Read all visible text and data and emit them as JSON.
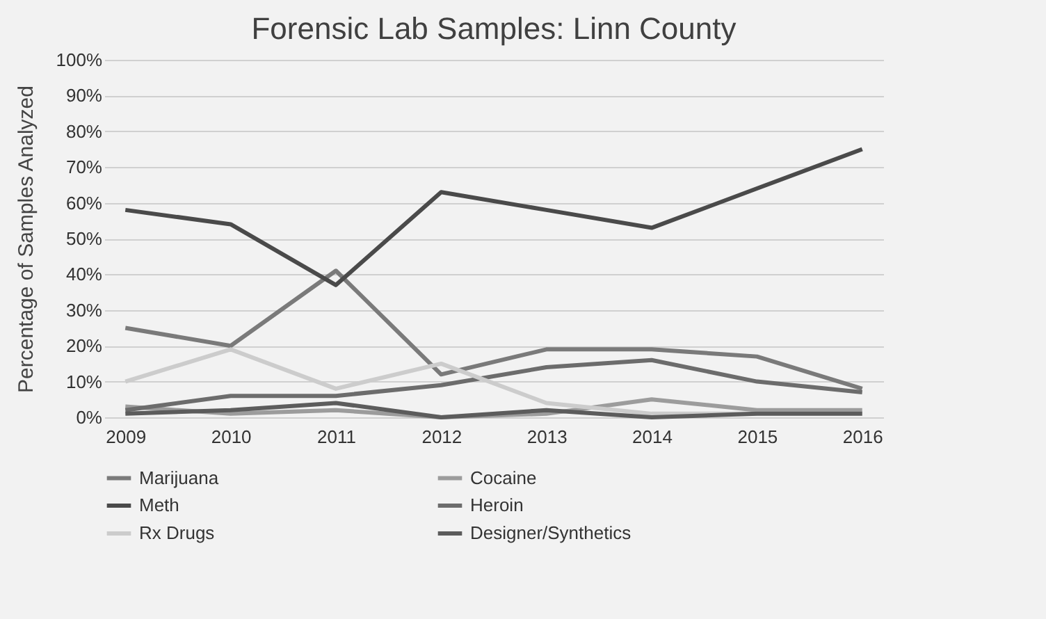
{
  "chart_data": {
    "type": "line",
    "title": "Forensic Lab Samples: Linn County",
    "ylabel": "Percentage of Samples Analyzed",
    "categories": [
      "2009",
      "2010",
      "2011",
      "2012",
      "2013",
      "2014",
      "2015",
      "2016"
    ],
    "ylim": [
      0,
      100
    ],
    "yticks": [
      {
        "value": 0,
        "label": "0%"
      },
      {
        "value": 10,
        "label": "10%"
      },
      {
        "value": 20,
        "label": "20%"
      },
      {
        "value": 30,
        "label": "30%"
      },
      {
        "value": 40,
        "label": "40%"
      },
      {
        "value": 50,
        "label": "50%"
      },
      {
        "value": 60,
        "label": "60%"
      },
      {
        "value": 70,
        "label": "70%"
      },
      {
        "value": 80,
        "label": "80%"
      },
      {
        "value": 90,
        "label": "90%"
      },
      {
        "value": 100,
        "label": "100%"
      }
    ],
    "grid": "y",
    "legend": "bottom",
    "marker": "none",
    "line_style": "solid",
    "series": [
      {
        "name": "Marijuana",
        "color": "#7a7a7a",
        "values": [
          25,
          20,
          41,
          12,
          19,
          19,
          17,
          8
        ]
      },
      {
        "name": "Cocaine",
        "color": "#9c9c9c",
        "values": [
          3,
          1,
          2,
          0,
          1,
          5,
          2,
          2
        ]
      },
      {
        "name": "Meth",
        "color": "#4a4a4a",
        "values": [
          58,
          54,
          37,
          63,
          58,
          53,
          64,
          75
        ]
      },
      {
        "name": "Heroin",
        "color": "#6c6c6c",
        "values": [
          2,
          6,
          6,
          9,
          14,
          16,
          10,
          7
        ]
      },
      {
        "name": "Rx Drugs",
        "color": "#cccccc",
        "values": [
          10,
          19,
          8,
          15,
          4,
          1,
          1,
          1
        ]
      },
      {
        "name": "Designer/Synthetics",
        "color": "#5c5c5c",
        "values": [
          1,
          2,
          4,
          0,
          2,
          0,
          1,
          1
        ]
      }
    ]
  }
}
